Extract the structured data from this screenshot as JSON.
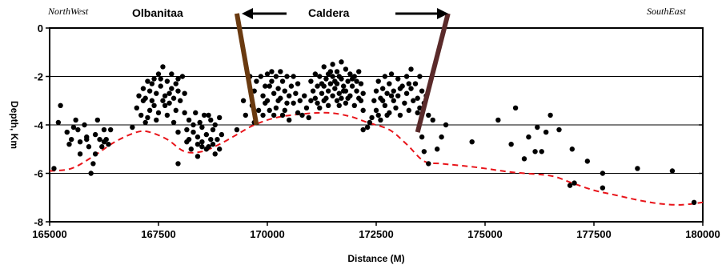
{
  "chart_data": {
    "type": "scatter",
    "xlabel": "Distance (M)",
    "ylabel": "Depth, Km",
    "xlim": [
      165000,
      180000
    ],
    "ylim": [
      -8,
      0
    ],
    "xticks": [
      "165000",
      "167500",
      "170000",
      "172500",
      "175000",
      "177500",
      "180000"
    ],
    "xtick_values": [
      165000,
      167500,
      170000,
      172500,
      175000,
      177500,
      180000
    ],
    "yticks": [
      "0",
      "-2",
      "-4",
      "-6",
      "-8"
    ],
    "ytick_values": [
      0,
      -2,
      -4,
      -6,
      -8
    ],
    "grid": "horizontal",
    "annotations": {
      "left_direction": "NorthWest",
      "right_direction": "SouthEast",
      "feature_left": "Olbanitaa",
      "feature_center": "Caldera"
    },
    "colors": {
      "points": "#000000",
      "depth_line": "#e8141a",
      "fault_left": "#6a3a10",
      "fault_right": "#5a2a2a",
      "grid": "#000000"
    },
    "faults": [
      {
        "name": "left fault",
        "x": [
          169300,
          169750
        ],
        "y": [
          0.6,
          -4.0
        ]
      },
      {
        "name": "right fault",
        "x": [
          174150,
          173450
        ],
        "y": [
          0.6,
          -4.3
        ]
      }
    ],
    "depth_line": {
      "x": [
        165000,
        165500,
        166000,
        166500,
        167000,
        167300,
        167700,
        168100,
        168500,
        168900,
        169300,
        169700,
        170200,
        170800,
        171400,
        171900,
        172300,
        172800,
        173200,
        173600,
        174000,
        174800,
        175600,
        176500,
        177000,
        177500,
        178000,
        178500,
        179000,
        179500,
        180000
      ],
      "y": [
        -5.9,
        -5.8,
        -5.3,
        -4.7,
        -4.3,
        -4.3,
        -4.6,
        -5.1,
        -5.1,
        -4.8,
        -4.4,
        -4.0,
        -3.7,
        -3.55,
        -3.5,
        -3.65,
        -3.9,
        -4.2,
        -4.8,
        -5.5,
        -5.6,
        -5.75,
        -5.95,
        -6.1,
        -6.4,
        -6.7,
        -6.9,
        -7.1,
        -7.25,
        -7.3,
        -7.2
      ]
    },
    "points": [
      [
        165100,
        -5.8
      ],
      [
        165200,
        -3.9
      ],
      [
        165250,
        -3.2
      ],
      [
        165400,
        -4.3
      ],
      [
        165450,
        -4.8
      ],
      [
        165500,
        -4.6
      ],
      [
        165600,
        -3.8
      ],
      [
        165650,
        -4.2
      ],
      [
        165700,
        -4.7
      ],
      [
        165800,
        -4.0
      ],
      [
        165850,
        -4.5
      ],
      [
        165900,
        -4.9
      ],
      [
        165950,
        -6.0
      ],
      [
        166000,
        -5.6
      ],
      [
        166050,
        -4.4
      ],
      [
        166100,
        -3.8
      ],
      [
        166150,
        -4.6
      ],
      [
        166200,
        -4.9
      ],
      [
        166250,
        -4.2
      ],
      [
        166300,
        -4.6
      ],
      [
        166350,
        -4.8
      ],
      [
        166400,
        -4.2
      ],
      [
        165700,
        -5.2
      ],
      [
        165550,
        -4.1
      ],
      [
        166050,
        -5.2
      ],
      [
        165850,
        -4.6
      ],
      [
        166250,
        -4.7
      ],
      [
        166900,
        -4.1
      ],
      [
        167000,
        -3.3
      ],
      [
        167050,
        -2.8
      ],
      [
        167100,
        -3.6
      ],
      [
        167150,
        -2.5
      ],
      [
        167200,
        -2.9
      ],
      [
        167200,
        -3.9
      ],
      [
        167250,
        -2.2
      ],
      [
        167300,
        -2.6
      ],
      [
        167300,
        -3.4
      ],
      [
        167350,
        -3.0
      ],
      [
        167400,
        -2.1
      ],
      [
        167400,
        -3.2
      ],
      [
        167450,
        -2.7
      ],
      [
        167500,
        -3.5
      ],
      [
        167500,
        -1.9
      ],
      [
        167550,
        -2.4
      ],
      [
        167600,
        -3.0
      ],
      [
        167600,
        -1.6
      ],
      [
        167650,
        -2.8
      ],
      [
        167700,
        -2.2
      ],
      [
        167700,
        -3.6
      ],
      [
        167750,
        -3.1
      ],
      [
        167800,
        -2.5
      ],
      [
        167800,
        -1.9
      ],
      [
        167850,
        -2.9
      ],
      [
        167900,
        -2.3
      ],
      [
        167900,
        -3.4
      ],
      [
        167950,
        -2.6
      ],
      [
        168000,
        -3.0
      ],
      [
        168050,
        -2.0
      ],
      [
        168100,
        -2.7
      ],
      [
        167250,
        -3.7
      ],
      [
        167150,
        -3.0
      ],
      [
        167350,
        -2.3
      ],
      [
        167450,
        -3.8
      ],
      [
        167650,
        -3.2
      ],
      [
        167550,
        -2.1
      ],
      [
        167950,
        -2.1
      ],
      [
        167750,
        -2.7
      ],
      [
        167850,
        -3.9
      ],
      [
        168100,
        -3.5
      ],
      [
        168150,
        -4.2
      ],
      [
        168200,
        -4.6
      ],
      [
        168200,
        -3.8
      ],
      [
        168250,
        -5.0
      ],
      [
        168300,
        -4.3
      ],
      [
        168350,
        -3.5
      ],
      [
        168400,
        -4.5
      ],
      [
        168400,
        -5.3
      ],
      [
        168450,
        -3.9
      ],
      [
        168500,
        -4.7
      ],
      [
        168500,
        -4.1
      ],
      [
        168550,
        -3.6
      ],
      [
        168600,
        -4.4
      ],
      [
        168600,
        -5.0
      ],
      [
        168650,
        -4.9
      ],
      [
        168700,
        -3.8
      ],
      [
        168700,
        -4.6
      ],
      [
        168750,
        -4.2
      ],
      [
        168800,
        -5.2
      ],
      [
        168800,
        -4.0
      ],
      [
        168850,
        -4.6
      ],
      [
        168900,
        -3.7
      ],
      [
        168900,
        -5.0
      ],
      [
        168950,
        -4.4
      ],
      [
        168300,
        -4.0
      ],
      [
        168500,
        -4.9
      ],
      [
        168650,
        -3.6
      ],
      [
        168150,
        -4.7
      ],
      [
        168400,
        -4.8
      ],
      [
        168750,
        -4.8
      ],
      [
        167950,
        -5.6
      ],
      [
        167950,
        -4.3
      ],
      [
        169300,
        -4.2
      ],
      [
        169450,
        -3.0
      ],
      [
        169500,
        -3.6
      ],
      [
        169600,
        -2.0
      ],
      [
        169650,
        -3.2
      ],
      [
        169700,
        -2.6
      ],
      [
        169700,
        -3.9
      ],
      [
        169750,
        -2.2
      ],
      [
        169800,
        -3.4
      ],
      [
        169850,
        -2.0
      ],
      [
        169900,
        -2.8
      ],
      [
        169900,
        -3.6
      ],
      [
        169950,
        -2.4
      ],
      [
        170000,
        -1.9
      ],
      [
        170000,
        -3.0
      ],
      [
        170050,
        -3.4
      ],
      [
        170100,
        -2.2
      ],
      [
        170100,
        -1.8
      ],
      [
        170150,
        -2.7
      ],
      [
        170200,
        -2.0
      ],
      [
        170200,
        -3.3
      ],
      [
        170250,
        -2.5
      ],
      [
        170300,
        -1.8
      ],
      [
        170300,
        -2.9
      ],
      [
        170350,
        -2.2
      ],
      [
        170400,
        -3.4
      ],
      [
        170400,
        -2.6
      ],
      [
        170450,
        -2.0
      ],
      [
        170500,
        -2.8
      ],
      [
        170500,
        -3.8
      ],
      [
        170550,
        -2.4
      ],
      [
        170600,
        -3.1
      ],
      [
        170650,
        -2.7
      ],
      [
        170700,
        -3.5
      ],
      [
        170700,
        -2.3
      ],
      [
        170750,
        -3.0
      ],
      [
        170800,
        -3.6
      ],
      [
        170850,
        -2.8
      ],
      [
        170900,
        -3.3
      ],
      [
        170950,
        -3.7
      ],
      [
        170050,
        -2.4
      ],
      [
        170250,
        -3.0
      ],
      [
        170450,
        -3.1
      ],
      [
        170600,
        -2.0
      ],
      [
        169950,
        -3.1
      ],
      [
        170150,
        -3.6
      ],
      [
        170350,
        -3.6
      ],
      [
        171000,
        -3.0
      ],
      [
        171000,
        -2.2
      ],
      [
        171050,
        -2.6
      ],
      [
        171100,
        -1.9
      ],
      [
        171100,
        -2.9
      ],
      [
        171150,
        -2.4
      ],
      [
        171200,
        -3.3
      ],
      [
        171200,
        -2.0
      ],
      [
        171250,
        -2.7
      ],
      [
        171300,
        -1.6
      ],
      [
        171300,
        -2.4
      ],
      [
        171300,
        -3.0
      ],
      [
        171350,
        -2.1
      ],
      [
        171400,
        -2.6
      ],
      [
        171400,
        -1.9
      ],
      [
        171400,
        -3.2
      ],
      [
        171450,
        -2.3
      ],
      [
        171500,
        -1.5
      ],
      [
        171500,
        -2.8
      ],
      [
        171500,
        -2.0
      ],
      [
        171550,
        -2.5
      ],
      [
        171600,
        -1.8
      ],
      [
        171600,
        -3.0
      ],
      [
        171600,
        -2.3
      ],
      [
        171650,
        -2.7
      ],
      [
        171700,
        -1.4
      ],
      [
        171700,
        -2.1
      ],
      [
        171700,
        -2.9
      ],
      [
        171750,
        -2.4
      ],
      [
        171800,
        -1.7
      ],
      [
        171800,
        -2.6
      ],
      [
        171800,
        -3.1
      ],
      [
        171850,
        -2.2
      ],
      [
        171900,
        -1.9
      ],
      [
        171900,
        -2.8
      ],
      [
        171950,
        -2.4
      ],
      [
        172000,
        -2.0
      ],
      [
        172000,
        -3.2
      ],
      [
        172050,
        -2.6
      ],
      [
        172100,
        -1.8
      ],
      [
        172100,
        -2.9
      ],
      [
        172150,
        -2.3
      ],
      [
        172200,
        -2.7
      ],
      [
        172200,
        -3.4
      ],
      [
        171250,
        -2.3
      ],
      [
        171350,
        -2.9
      ],
      [
        171450,
        -1.8
      ],
      [
        171550,
        -2.2
      ],
      [
        171650,
        -2.0
      ],
      [
        171750,
        -2.6
      ],
      [
        171850,
        -2.9
      ],
      [
        171950,
        -2.1
      ],
      [
        172050,
        -2.2
      ],
      [
        171150,
        -3.1
      ],
      [
        171650,
        -3.2
      ],
      [
        172150,
        -3.0
      ],
      [
        172400,
        -3.7
      ],
      [
        172450,
        -3.0
      ],
      [
        172500,
        -2.6
      ],
      [
        172500,
        -3.4
      ],
      [
        172550,
        -2.2
      ],
      [
        172600,
        -2.9
      ],
      [
        172600,
        -3.8
      ],
      [
        172650,
        -2.5
      ],
      [
        172700,
        -2.0
      ],
      [
        172700,
        -3.2
      ],
      [
        172750,
        -2.7
      ],
      [
        172800,
        -3.5
      ],
      [
        172800,
        -2.3
      ],
      [
        172850,
        -1.9
      ],
      [
        172900,
        -3.0
      ],
      [
        172900,
        -2.6
      ],
      [
        172950,
        -3.3
      ],
      [
        173000,
        -2.1
      ],
      [
        173000,
        -2.8
      ],
      [
        173050,
        -3.6
      ],
      [
        173100,
        -2.4
      ],
      [
        173150,
        -3.1
      ],
      [
        173200,
        -2.0
      ],
      [
        173200,
        -2.7
      ],
      [
        173250,
        -3.4
      ],
      [
        173300,
        -2.5
      ],
      [
        173300,
        -1.7
      ],
      [
        173350,
        -3.0
      ],
      [
        173400,
        -2.3
      ],
      [
        173450,
        -2.9
      ],
      [
        173500,
        -3.3
      ],
      [
        173500,
        -2.0
      ],
      [
        173550,
        -2.6
      ],
      [
        173600,
        -3.1
      ],
      [
        173650,
        -2.8
      ],
      [
        173700,
        -3.6
      ],
      [
        172300,
        -4.1
      ],
      [
        172350,
        -3.9
      ],
      [
        172200,
        -4.2
      ],
      [
        172650,
        -3.0
      ],
      [
        172850,
        -2.8
      ],
      [
        173050,
        -2.5
      ],
      [
        173250,
        -2.3
      ],
      [
        173450,
        -3.5
      ],
      [
        172550,
        -3.6
      ],
      [
        172750,
        -3.6
      ],
      [
        173550,
        -4.5
      ],
      [
        173600,
        -5.1
      ],
      [
        173800,
        -3.8
      ],
      [
        173900,
        -5.0
      ],
      [
        174000,
        -4.5
      ],
      [
        174100,
        -4.0
      ],
      [
        174700,
        -4.7
      ],
      [
        175300,
        -3.8
      ],
      [
        175600,
        -4.8
      ],
      [
        175700,
        -3.3
      ],
      [
        176000,
        -4.5
      ],
      [
        176150,
        -5.1
      ],
      [
        176200,
        -4.1
      ],
      [
        176400,
        -4.3
      ],
      [
        176500,
        -3.6
      ],
      [
        176700,
        -4.2
      ],
      [
        177000,
        -5.0
      ],
      [
        177350,
        -5.5
      ],
      [
        177700,
        -6.0
      ],
      [
        177700,
        -6.6
      ],
      [
        178500,
        -5.8
      ],
      [
        179300,
        -5.9
      ],
      [
        179800,
        -7.2
      ],
      [
        175900,
        -5.4
      ],
      [
        176300,
        -5.1
      ],
      [
        176950,
        -6.5
      ],
      [
        173700,
        -5.6
      ],
      [
        177050,
        -6.4
      ]
    ]
  }
}
